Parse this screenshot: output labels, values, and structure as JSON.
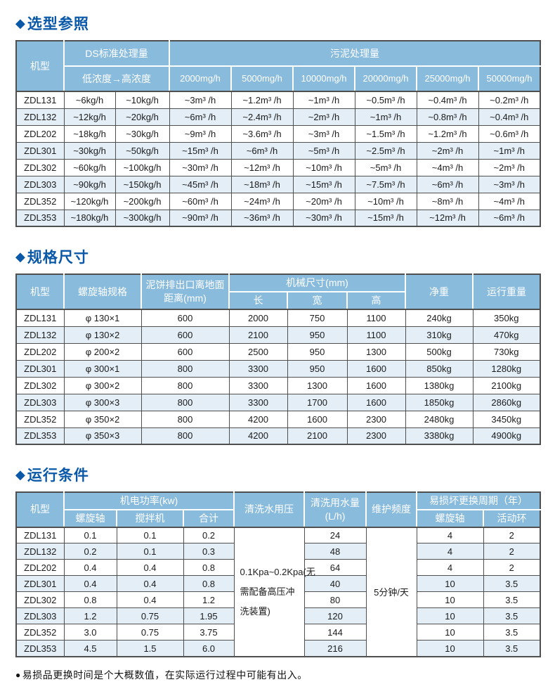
{
  "icons": {
    "diamond": "◆",
    "bullet": "●"
  },
  "colors": {
    "title_blue": "#0A58A8",
    "header_blue": "#89BBDD",
    "row_alt_blue": "#E3EEF7",
    "border_gray": "#4F4F4F",
    "header_text": "#FFFFFF"
  },
  "sections": {
    "selection": {
      "title": "选型参照",
      "header": {
        "model": "机型",
        "ds_group": "DS标准处理量",
        "ds_range": "低浓度→高浓度",
        "sludge_group": "污泥处理量",
        "rates": [
          "2000mg/h",
          "5000mg/h",
          "10000mg/h",
          "20000mg/h",
          "25000mg/h",
          "50000mg/h"
        ]
      },
      "rows": [
        [
          "ZDL131",
          "~6kg/h",
          "~10kg/h",
          "~3m³ /h",
          "~1.2m³ /h",
          "~1m³ /h",
          "~0.5m³ /h",
          "~0.4m³ /h",
          "~0.2m³ /h"
        ],
        [
          "ZDL132",
          "~12kg/h",
          "~20kg/h",
          "~6m³ /h",
          "~2.4m³ /h",
          "~2m³ /h",
          "~1m³ /h",
          "~0.8m³ /h",
          "~0.4m³ /h"
        ],
        [
          "ZDL202",
          "~18kg/h",
          "~30kg/h",
          "~9m³ /h",
          "~3.6m³ /h",
          "~3m³ /h",
          "~1.5m³ /h",
          "~1.2m³ /h",
          "~0.6m³ /h"
        ],
        [
          "ZDL301",
          "~30kg/h",
          "~50kg/h",
          "~15m³ /h",
          "~6m³ /h",
          "~5m³ /h",
          "~2.5m³ /h",
          "~2m³ /h",
          "~1m³ /h"
        ],
        [
          "ZDL302",
          "~60kg/h",
          "~100kg/h",
          "~30m³ /h",
          "~12m³ /h",
          "~10m³ /h",
          "~5m³ /h",
          "~4m³ /h",
          "~2m³ /h"
        ],
        [
          "ZDL303",
          "~90kg/h",
          "~150kg/h",
          "~45m³ /h",
          "~18m³ /h",
          "~15m³ /h",
          "~7.5m³ /h",
          "~6m³ /h",
          "~3m³ /h"
        ],
        [
          "ZDL352",
          "~120kg/h",
          "~200kg/h",
          "~60m³ /h",
          "~24m³ /h",
          "~20m³ /h",
          "~10m³ /h",
          "~8m³ /h",
          "~4m³ /h"
        ],
        [
          "ZDL353",
          "~180kg/h",
          "~300kg/h",
          "~90m³ /h",
          "~36m³ /h",
          "~30m³ /h",
          "~15m³ /h",
          "~12m³ /h",
          "~6m³ /h"
        ]
      ]
    },
    "dimensions": {
      "title": "规格尺寸",
      "header": {
        "model": "机型",
        "screw_spec": "螺旋轴规格",
        "outlet_height": "泥饼排出口离地面距离(mm)",
        "machine_size": "机械尺寸(mm)",
        "length": "长",
        "width": "宽",
        "height": "高",
        "net_weight": "净重",
        "run_weight": "运行重量"
      },
      "rows": [
        [
          "ZDL131",
          "φ 130×1",
          "600",
          "2000",
          "750",
          "1100",
          "240kg",
          "350kg"
        ],
        [
          "ZDL132",
          "φ 130×2",
          "600",
          "2100",
          "950",
          "1100",
          "310kg",
          "470kg"
        ],
        [
          "ZDL202",
          "φ 200×2",
          "600",
          "2500",
          "950",
          "1300",
          "500kg",
          "730kg"
        ],
        [
          "ZDL301",
          "φ 300×1",
          "800",
          "3300",
          "950",
          "1600",
          "850kg",
          "1280kg"
        ],
        [
          "ZDL302",
          "φ 300×2",
          "800",
          "3300",
          "1300",
          "1600",
          "1380kg",
          "2100kg"
        ],
        [
          "ZDL303",
          "φ 300×3",
          "800",
          "3300",
          "1700",
          "1600",
          "1850kg",
          "2860kg"
        ],
        [
          "ZDL352",
          "φ 350×2",
          "800",
          "4200",
          "1600",
          "2300",
          "2480kg",
          "3450kg"
        ],
        [
          "ZDL353",
          "φ 350×3",
          "800",
          "4200",
          "2100",
          "2300",
          "3380kg",
          "4900kg"
        ]
      ]
    },
    "operation": {
      "title": "运行条件",
      "header": {
        "model": "机型",
        "power_group": "机电功率(kw)",
        "power_screw": "螺旋轴",
        "power_mixer": "搅拌机",
        "power_total": "合计",
        "wash_pressure": "清洗水用压",
        "wash_amount": "清洗用水量(L/h)",
        "maintenance": "维护频度",
        "replace_group": "易损坏更换周期（年）",
        "replace_screw": "螺旋轴",
        "replace_ring": "活动环"
      },
      "pressure_value": "0.1Kpa~0.2Kpa(无需配备高压冲洗装置)",
      "maintenance_value": "5分钟/天",
      "rows": [
        [
          "ZDL131",
          "0.1",
          "0.1",
          "0.2",
          "24",
          "4",
          "2"
        ],
        [
          "ZDL132",
          "0.2",
          "0.1",
          "0.3",
          "48",
          "4",
          "2"
        ],
        [
          "ZDL202",
          "0.4",
          "0.4",
          "0.8",
          "64",
          "4",
          "2"
        ],
        [
          "ZDL301",
          "0.4",
          "0.4",
          "0.8",
          "40",
          "10",
          "3.5"
        ],
        [
          "ZDL302",
          "0.8",
          "0.4",
          "1.2",
          "80",
          "10",
          "3.5"
        ],
        [
          "ZDL303",
          "1.2",
          "0.75",
          "1.95",
          "120",
          "10",
          "3.5"
        ],
        [
          "ZDL352",
          "3.0",
          "0.75",
          "3.75",
          "144",
          "10",
          "3.5"
        ],
        [
          "ZDL353",
          "4.5",
          "1.5",
          "6.0",
          "216",
          "10",
          "3.5"
        ]
      ]
    }
  },
  "note": "易损品更换时间是个大概数值，在实际运行过程中可能有出入。"
}
